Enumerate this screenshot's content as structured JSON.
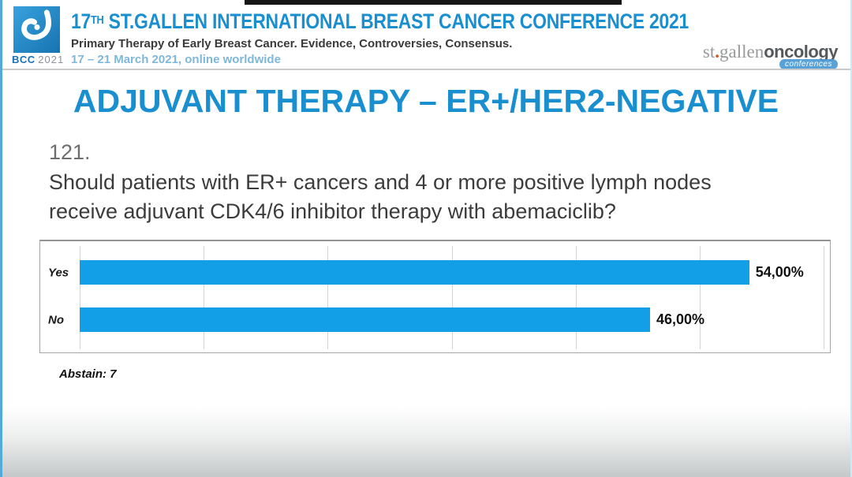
{
  "header": {
    "logo": {
      "bcc": "BCC",
      "year": "2021"
    },
    "title": {
      "num": "17",
      "sup": "TH",
      "rest": " ST.GALLEN INTERNATIONAL BREAST CANCER CONFERENCE 2021"
    },
    "subtitle": "Primary Therapy of Early Breast Cancer. Evidence, Controversies, Consensus.",
    "dates": "17 – 21 March 2021, online worldwide",
    "brand": {
      "st": "st",
      "dot": ".",
      "gallen": "gallen",
      "oncology": "oncology",
      "conferences": "conferences"
    }
  },
  "slide": {
    "title": "ADJUVANT THERAPY – ER+/HER2-NEGATIVE",
    "question_number": "121.",
    "question": "Should patients with ER+ cancers and 4 or more positive lymph nodes\nreceive adjuvant CDK4/6 inhibitor therapy with abemaciclib?",
    "abstain": "Abstain: 7"
  },
  "chart_data": {
    "type": "bar",
    "orientation": "horizontal",
    "title": "",
    "categories": [
      "Yes",
      "No"
    ],
    "values": [
      54,
      46
    ],
    "value_labels": [
      "54,00%",
      "46,00%"
    ],
    "xlim": [
      0,
      60
    ],
    "grid_step": 10,
    "grid": true,
    "legend": false,
    "note": "Abstain: 7"
  },
  "colors": {
    "accent_blue": "#1a8fd0",
    "bar_blue": "#129fe8",
    "date_blue": "#7fb7d9",
    "brand_orange": "#d4571e",
    "conf_tag_blue": "#4c9bd4"
  }
}
